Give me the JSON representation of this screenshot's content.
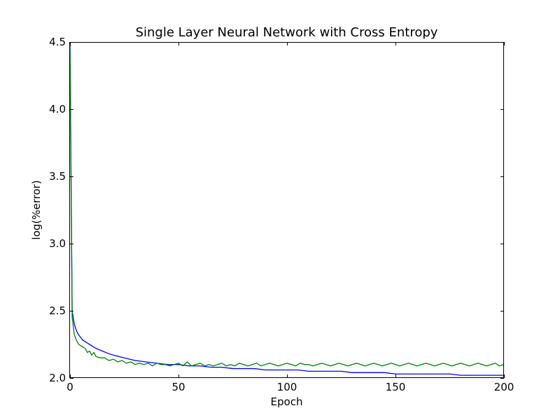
{
  "chart_data": {
    "type": "line",
    "title": "Single Layer Neural Network with Cross Entropy",
    "xlabel": "Epoch",
    "ylabel": "log(%error)",
    "xlim": [
      0,
      200
    ],
    "ylim": [
      2.0,
      4.5
    ],
    "xticks": [
      0,
      50,
      100,
      150,
      200
    ],
    "yticks": [
      2.0,
      2.5,
      3.0,
      3.5,
      4.0,
      4.5
    ],
    "xtick_labels": [
      "0",
      "50",
      "100",
      "150",
      "200"
    ],
    "ytick_labels": [
      "2.0",
      "2.5",
      "3.0",
      "3.5",
      "4.0",
      "4.5"
    ],
    "grid": false,
    "legend": "none",
    "series": [
      {
        "color": "#0000ff",
        "x": [
          0,
          1,
          2,
          3,
          4,
          5,
          6,
          8,
          10,
          12,
          15,
          18,
          20,
          25,
          30,
          35,
          40,
          45,
          50,
          55,
          60,
          65,
          70,
          75,
          80,
          85,
          90,
          95,
          100,
          105,
          110,
          115,
          120,
          125,
          130,
          135,
          140,
          145,
          150,
          155,
          160,
          165,
          170,
          175,
          180,
          185,
          190,
          195,
          200
        ],
        "values": [
          4.48,
          2.5,
          2.4,
          2.35,
          2.32,
          2.3,
          2.28,
          2.26,
          2.24,
          2.22,
          2.2,
          2.18,
          2.17,
          2.15,
          2.13,
          2.12,
          2.11,
          2.1,
          2.1,
          2.09,
          2.09,
          2.08,
          2.08,
          2.07,
          2.07,
          2.07,
          2.06,
          2.06,
          2.06,
          2.06,
          2.05,
          2.05,
          2.05,
          2.05,
          2.04,
          2.04,
          2.04,
          2.04,
          2.03,
          2.03,
          2.03,
          2.03,
          2.03,
          2.03,
          2.02,
          2.02,
          2.02,
          2.02,
          2.02
        ]
      },
      {
        "color": "#008000",
        "x": [
          0,
          1,
          2,
          3,
          4,
          5,
          6,
          7,
          8,
          9,
          10,
          11,
          12,
          14,
          16,
          18,
          20,
          22,
          24,
          26,
          28,
          30,
          32,
          34,
          36,
          38,
          40,
          42,
          44,
          46,
          48,
          50,
          52,
          54,
          56,
          58,
          60,
          62,
          64,
          66,
          68,
          70,
          72,
          74,
          76,
          78,
          80,
          82,
          84,
          86,
          88,
          90,
          92,
          94,
          96,
          98,
          100,
          102,
          104,
          106,
          108,
          110,
          112,
          114,
          116,
          118,
          120,
          122,
          124,
          126,
          128,
          130,
          132,
          134,
          136,
          138,
          140,
          142,
          144,
          146,
          148,
          150,
          152,
          154,
          156,
          158,
          160,
          162,
          164,
          166,
          168,
          170,
          172,
          174,
          176,
          178,
          180,
          182,
          184,
          186,
          188,
          190,
          192,
          194,
          196,
          198,
          200
        ],
        "values": [
          4.45,
          2.45,
          2.32,
          2.28,
          2.25,
          2.24,
          2.23,
          2.22,
          2.19,
          2.2,
          2.17,
          2.19,
          2.16,
          2.15,
          2.15,
          2.13,
          2.14,
          2.12,
          2.13,
          2.11,
          2.12,
          2.1,
          2.11,
          2.1,
          2.11,
          2.09,
          2.11,
          2.1,
          2.1,
          2.09,
          2.1,
          2.11,
          2.09,
          2.12,
          2.09,
          2.1,
          2.11,
          2.09,
          2.1,
          2.09,
          2.1,
          2.11,
          2.09,
          2.1,
          2.09,
          2.11,
          2.1,
          2.09,
          2.1,
          2.11,
          2.09,
          2.1,
          2.11,
          2.1,
          2.09,
          2.1,
          2.11,
          2.1,
          2.09,
          2.11,
          2.1,
          2.1,
          2.09,
          2.1,
          2.11,
          2.1,
          2.09,
          2.1,
          2.11,
          2.1,
          2.09,
          2.1,
          2.11,
          2.1,
          2.09,
          2.1,
          2.11,
          2.1,
          2.09,
          2.1,
          2.11,
          2.1,
          2.09,
          2.1,
          2.11,
          2.1,
          2.09,
          2.1,
          2.11,
          2.1,
          2.09,
          2.1,
          2.11,
          2.1,
          2.09,
          2.1,
          2.11,
          2.1,
          2.09,
          2.1,
          2.11,
          2.1,
          2.09,
          2.1,
          2.11,
          2.09,
          2.1
        ]
      }
    ]
  }
}
